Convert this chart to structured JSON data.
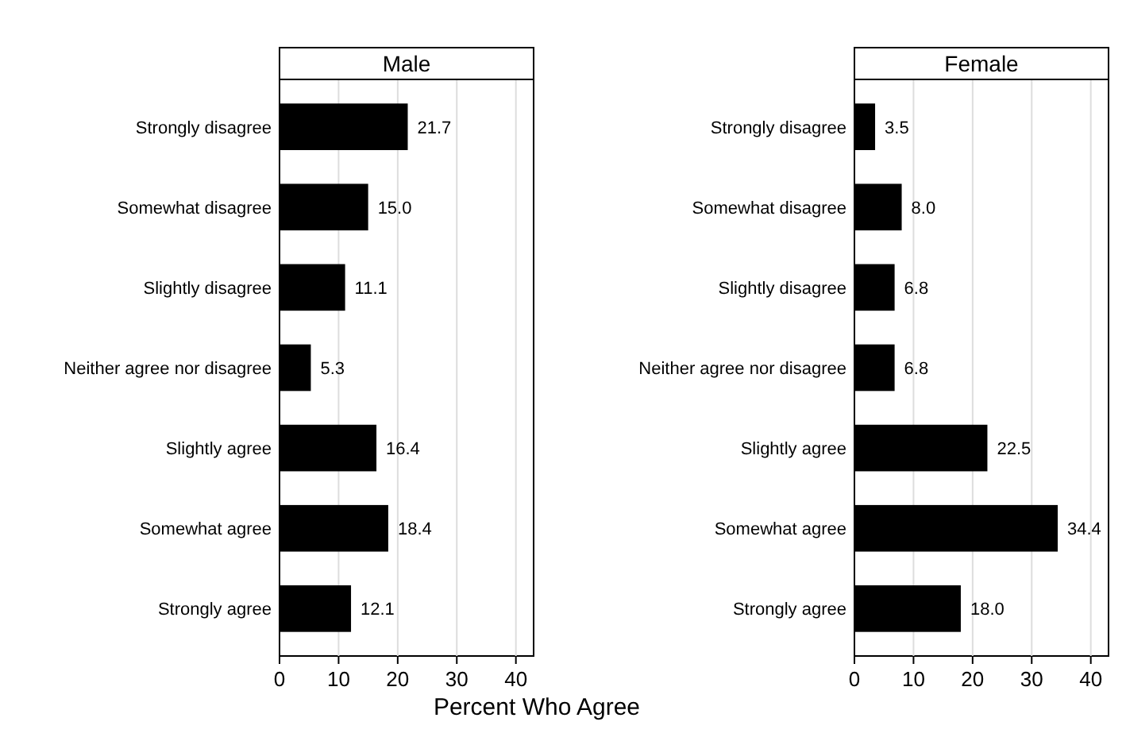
{
  "chart_data": [
    {
      "type": "bar",
      "orientation": "horizontal",
      "title": "Male",
      "xlabel": "Percent Who Agree",
      "categories": [
        "Strongly disagree",
        "Somewhat disagree",
        "Slightly disagree",
        "Neither agree nor disagree",
        "Slightly agree",
        "Somewhat agree",
        "Strongly agree"
      ],
      "values": [
        21.7,
        15.0,
        11.1,
        5.3,
        16.4,
        18.4,
        12.1
      ],
      "value_labels": [
        "21.7",
        "15.0",
        "11.1",
        "5.3",
        "16.4",
        "18.4",
        "12.1"
      ],
      "color": "#000000",
      "xlim": [
        0,
        43
      ],
      "xticks": [
        0,
        10,
        20,
        30,
        40
      ],
      "grid": "x"
    },
    {
      "type": "bar",
      "orientation": "horizontal",
      "title": "Female",
      "categories": [
        "Strongly disagree",
        "Somewhat disagree",
        "Slightly disagree",
        "Neither agree nor disagree",
        "Slightly agree",
        "Somewhat agree",
        "Strongly agree"
      ],
      "values": [
        3.5,
        8.0,
        6.8,
        6.8,
        22.5,
        34.4,
        18.0
      ],
      "value_labels": [
        "3.5",
        "8.0",
        "6.8",
        "6.8",
        "22.5",
        "34.4",
        "18.0"
      ],
      "color": "#000000",
      "xlim": [
        0,
        43
      ],
      "xticks": [
        0,
        10,
        20,
        30,
        40
      ],
      "grid": "x"
    }
  ]
}
